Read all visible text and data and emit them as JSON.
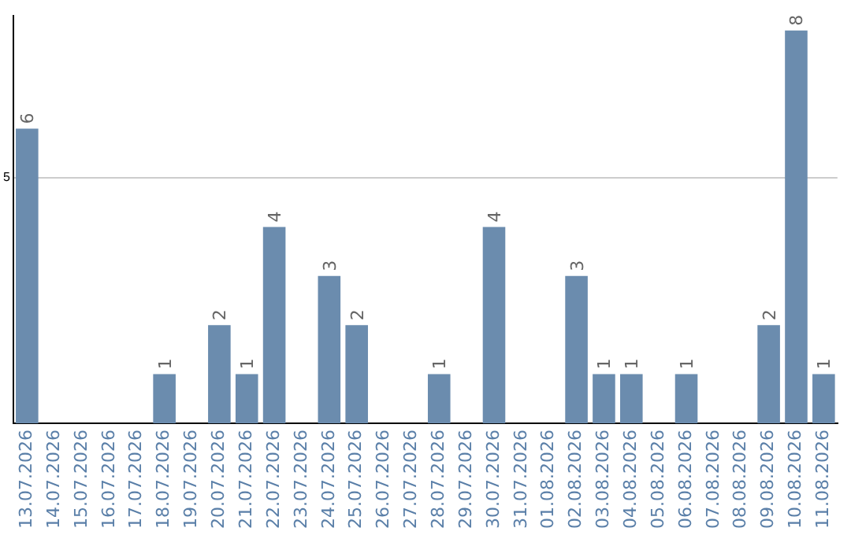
{
  "chart_data": {
    "type": "bar",
    "categories": [
      "13.07.2026",
      "14.07.2026",
      "15.07.2026",
      "16.07.2026",
      "17.07.2026",
      "18.07.2026",
      "19.07.2026",
      "20.07.2026",
      "21.07.2026",
      "22.07.2026",
      "23.07.2026",
      "24.07.2026",
      "25.07.2026",
      "26.07.2026",
      "27.07.2026",
      "28.07.2026",
      "29.07.2026",
      "30.07.2026",
      "31.07.2026",
      "01.08.2026",
      "02.08.2026",
      "03.08.2026",
      "04.08.2026",
      "05.08.2026",
      "06.08.2026",
      "07.08.2026",
      "08.08.2026",
      "09.08.2026",
      "10.08.2026",
      "11.08.2026"
    ],
    "values": [
      6,
      0,
      0,
      0,
      0,
      1,
      0,
      2,
      1,
      4,
      0,
      3,
      2,
      0,
      0,
      1,
      0,
      4,
      0,
      0,
      3,
      1,
      1,
      0,
      1,
      0,
      0,
      2,
      8,
      1
    ],
    "value_labels": [
      "6",
      null,
      null,
      null,
      null,
      "1",
      null,
      "2",
      "1",
      "4",
      null,
      "3",
      "2",
      null,
      null,
      "1",
      null,
      "4",
      null,
      null,
      "3",
      "1",
      "1",
      null,
      "1",
      null,
      null,
      "2",
      "8",
      "1"
    ],
    "color": "#6b8cae",
    "ylim": [
      0,
      8.3
    ],
    "yticks": [
      5
    ],
    "grid": "y",
    "legend": false
  }
}
